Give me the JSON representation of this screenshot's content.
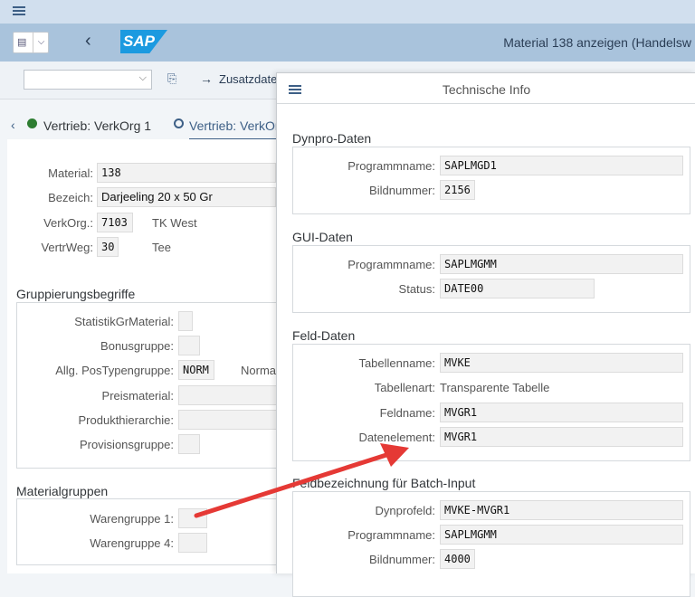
{
  "topbar": {
    "menu_icon": "hamburger-icon"
  },
  "header": {
    "title": "Material 138 anzeigen (Handelsw",
    "logo": "SAP",
    "colors": {
      "logo": "#1b9ae0",
      "header": "#a9c3dc"
    }
  },
  "toolbar": {
    "command_value": "",
    "next_screen_label": "Zusatzdaten"
  },
  "tabs": [
    {
      "label": "Vertrieb: VerkOrg 1"
    },
    {
      "label": "Vertrieb: VerkOr"
    }
  ],
  "main": {
    "fields": [
      {
        "label": "Material:",
        "value": "138"
      },
      {
        "label": "Bezeich:",
        "value": "Darjeeling 20 x 50 Gr"
      },
      {
        "label": "VerkOrg.:",
        "value": "7103",
        "desc": "TK West"
      },
      {
        "label": "VertrWeg:",
        "value": "30",
        "desc": "Tee"
      }
    ],
    "groups": {
      "title": "Gruppierungsbegriffe",
      "rows": [
        {
          "label": "StatistikGrMaterial:",
          "value": ""
        },
        {
          "label": "Bonusgruppe:",
          "value": ""
        },
        {
          "label": "Allg. PosTypengruppe:",
          "value": "NORM",
          "desc": "Normal"
        },
        {
          "label": "Preismaterial:",
          "value": ""
        },
        {
          "label": "Produkthierarchie:",
          "value": ""
        },
        {
          "label": "Provisionsgruppe:",
          "value": ""
        }
      ]
    },
    "matgroups": {
      "title": "Materialgruppen",
      "rows": [
        {
          "label": "Warengruppe 1:",
          "value": ""
        },
        {
          "label": "Warengruppe 4:",
          "value": ""
        }
      ]
    }
  },
  "panel": {
    "title": "Technische Info",
    "sections": [
      {
        "title": "Dynpro-Daten",
        "rows": [
          {
            "label": "Programmname:",
            "value": "SAPLMGD1"
          },
          {
            "label": "Bildnummer:",
            "value": "2156"
          }
        ]
      },
      {
        "title": "GUI-Daten",
        "rows": [
          {
            "label": "Programmname:",
            "value": "SAPLMGMM"
          },
          {
            "label": "Status:",
            "value": "DATE00"
          }
        ]
      },
      {
        "title": "Feld-Daten",
        "rows": [
          {
            "label": "Tabellenname:",
            "value": "MVKE"
          },
          {
            "label": "Tabellenart:",
            "value": "Transparente Tabelle"
          },
          {
            "label": "Feldname:",
            "value": "MVGR1"
          },
          {
            "label": "Datenelement:",
            "value": "MVGR1"
          }
        ]
      },
      {
        "title": "Feldbezeichnung für Batch-Input",
        "rows": [
          {
            "label": "Dynprofeld:",
            "value": "MVKE-MVGR1"
          },
          {
            "label": "Programmname:",
            "value": "SAPLMGMM"
          },
          {
            "label": "Bildnummer:",
            "value": "4000"
          }
        ]
      }
    ]
  },
  "annotation": {
    "arrow_color": "#e53935"
  }
}
